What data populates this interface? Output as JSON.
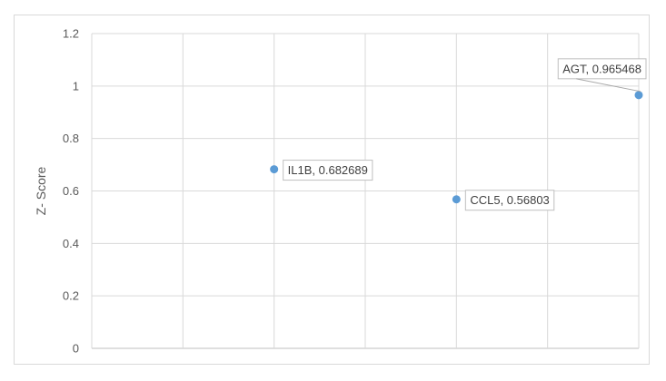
{
  "chart_data": {
    "type": "scatter",
    "title": "",
    "xlabel": "",
    "ylabel": "Z- Score",
    "ylim": [
      0,
      1.2
    ],
    "yticks": [
      "0",
      "0.2",
      "0.4",
      "0.6",
      "0.8",
      "1",
      "1.2"
    ],
    "xlim": [
      0,
      6
    ],
    "grid": true,
    "legend": "none",
    "marker_color": "#5b9bd5",
    "points": [
      {
        "x": 2,
        "y": 0.682689,
        "label": "IL1B, 0.682689"
      },
      {
        "x": 4,
        "y": 0.56803,
        "label": "CCL5, 0.56803"
      },
      {
        "x": 6,
        "y": 0.965468,
        "label": "AGT, 0.965468"
      }
    ]
  }
}
